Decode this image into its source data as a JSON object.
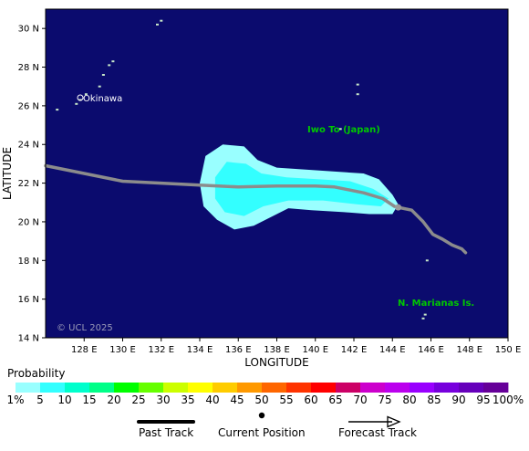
{
  "map": {
    "background_color": "#0b0b6e",
    "land_color": "#c8e8c8",
    "label_color": "#00c800",
    "watermark": "© UCL 2025",
    "city_label": "Okinawa",
    "region_labels": [
      "Iwo To (Japan)",
      "N. Marianas Is."
    ],
    "x_axis": {
      "label": "LONGITUDE",
      "range": [
        126,
        150
      ],
      "ticks": [
        "128 E",
        "130 E",
        "132 E",
        "134 E",
        "136 E",
        "138 E",
        "140 E",
        "142 E",
        "144 E",
        "146 E",
        "148 E",
        "150 E"
      ]
    },
    "y_axis": {
      "label": "LATITUDE",
      "range": [
        14,
        31
      ],
      "ticks": [
        "14 N",
        "16 N",
        "18 N",
        "20 N",
        "22 N",
        "24 N",
        "26 N",
        "28 N",
        "30 N"
      ]
    },
    "past_track": [
      [
        126.0,
        22.9
      ],
      [
        130.0,
        22.1
      ],
      [
        134.0,
        21.9
      ],
      [
        136.0,
        21.8
      ],
      [
        138.0,
        21.85
      ],
      [
        140.0,
        21.85
      ],
      [
        141.0,
        21.8
      ],
      [
        142.5,
        21.5
      ],
      [
        143.5,
        21.2
      ],
      [
        144.1,
        20.8
      ]
    ],
    "later_track": [
      [
        144.3,
        20.75
      ],
      [
        145.0,
        20.6
      ],
      [
        145.6,
        20.0
      ],
      [
        146.1,
        19.35
      ],
      [
        146.6,
        19.1
      ],
      [
        147.1,
        18.8
      ],
      [
        147.6,
        18.6
      ],
      [
        147.8,
        18.4
      ]
    ],
    "current_position": [
      144.3,
      20.75
    ],
    "probability_zones": {
      "outer_color": "#99ffff",
      "inner_color": "#33ffff",
      "outer": [
        [
          134.0,
          22.0
        ],
        [
          134.3,
          23.4
        ],
        [
          135.2,
          24.0
        ],
        [
          136.3,
          23.9
        ],
        [
          137.0,
          23.2
        ],
        [
          138.0,
          22.8
        ],
        [
          139.5,
          22.7
        ],
        [
          141.0,
          22.6
        ],
        [
          142.5,
          22.5
        ],
        [
          143.3,
          22.2
        ],
        [
          144.0,
          21.4
        ],
        [
          144.3,
          20.9
        ],
        [
          144.0,
          20.4
        ],
        [
          142.8,
          20.4
        ],
        [
          141.5,
          20.5
        ],
        [
          139.8,
          20.6
        ],
        [
          138.6,
          20.7
        ],
        [
          137.8,
          20.3
        ],
        [
          136.8,
          19.8
        ],
        [
          135.8,
          19.6
        ],
        [
          134.9,
          20.1
        ],
        [
          134.2,
          20.8
        ]
      ],
      "inner": [
        [
          134.8,
          22.3
        ],
        [
          135.4,
          23.1
        ],
        [
          136.4,
          23.0
        ],
        [
          137.2,
          22.5
        ],
        [
          138.5,
          22.3
        ],
        [
          140.2,
          22.2
        ],
        [
          141.8,
          22.1
        ],
        [
          143.0,
          21.7
        ],
        [
          143.8,
          21.2
        ],
        [
          143.4,
          20.8
        ],
        [
          142.2,
          20.9
        ],
        [
          140.4,
          21.1
        ],
        [
          138.6,
          21.1
        ],
        [
          137.3,
          20.8
        ],
        [
          136.3,
          20.3
        ],
        [
          135.3,
          20.5
        ],
        [
          134.8,
          21.2
        ]
      ]
    },
    "islands": [
      [
        132.0,
        30.4
      ],
      [
        131.8,
        30.2
      ],
      [
        129.5,
        28.3
      ],
      [
        129.3,
        28.1
      ],
      [
        129.0,
        27.6
      ],
      [
        128.8,
        27.0
      ],
      [
        128.1,
        26.6
      ],
      [
        127.8,
        26.3
      ],
      [
        127.6,
        26.1
      ],
      [
        126.6,
        25.8
      ],
      [
        142.2,
        27.1
      ],
      [
        142.2,
        26.6
      ],
      [
        141.3,
        24.8
      ],
      [
        145.8,
        18.0
      ],
      [
        145.7,
        15.2
      ],
      [
        145.6,
        15.0
      ]
    ]
  },
  "legend": {
    "title": "Probability",
    "swatches": [
      "#99ffff",
      "#33ffff",
      "#00ffcc",
      "#00ff88",
      "#00ff00",
      "#66ff00",
      "#ccff00",
      "#ffff00",
      "#ffcc00",
      "#ff9900",
      "#ff6600",
      "#ff3300",
      "#ff0000",
      "#cc0066",
      "#cc00cc",
      "#bb00ee",
      "#9900ff",
      "#7700dd",
      "#6600bb",
      "#660099"
    ],
    "labels": [
      "1%",
      "5",
      "10",
      "15",
      "20",
      "25",
      "30",
      "35",
      "40",
      "45",
      "50",
      "55",
      "60",
      "65",
      "70",
      "75",
      "80",
      "85",
      "90",
      "95",
      "100%"
    ]
  },
  "key": {
    "past_track": "Past Track",
    "current_position": "Current Position",
    "forecast_track": "Forecast Track"
  }
}
